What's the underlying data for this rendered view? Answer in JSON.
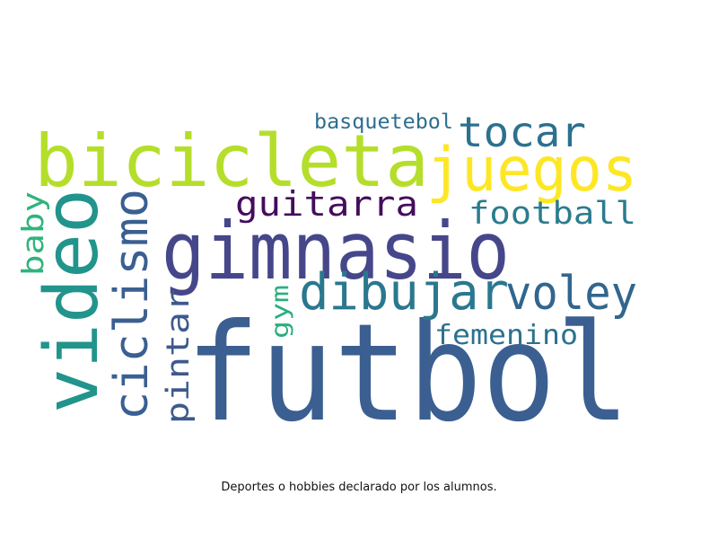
{
  "caption": "Deportes o hobbies declarado por los alumnos.",
  "words": [
    {
      "text": "futbol",
      "color": "#3b5f91"
    },
    {
      "text": "gimnasio",
      "color": "#46478a"
    },
    {
      "text": "bicicleta",
      "color": "#b5de2b"
    },
    {
      "text": "juegos",
      "color": "#fde725"
    },
    {
      "text": "video",
      "color": "#21948c"
    },
    {
      "text": "ciclismo",
      "color": "#3b5f91"
    },
    {
      "text": "dibujar",
      "color": "#2a788e"
    },
    {
      "text": "voley",
      "color": "#31668e"
    },
    {
      "text": "tocar",
      "color": "#2c718e"
    },
    {
      "text": "guitarra",
      "color": "#440d5c"
    },
    {
      "text": "football",
      "color": "#2a7c8e"
    },
    {
      "text": "pintar",
      "color": "#3e5a8c"
    },
    {
      "text": "baby",
      "color": "#2fb47c"
    },
    {
      "text": "femenino",
      "color": "#2c718e"
    },
    {
      "text": "basquetebol",
      "color": "#2d6f8e"
    },
    {
      "text": "gym",
      "color": "#29af7f"
    }
  ]
}
